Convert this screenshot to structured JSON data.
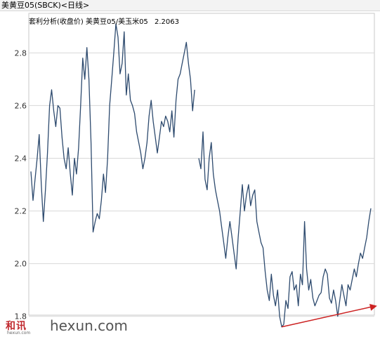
{
  "window_title": "美黄豆05(SBCK)<日线>",
  "legend_text": "套利分析(收盘价) 美黄豆05/美玉米05",
  "legend_value": "2.2063",
  "watermark": {
    "cn": "和讯",
    "sub": "hexun.com",
    "en": "hexun.com"
  },
  "colors": {
    "line": "#2d4a6e",
    "trend_arrow": "#cc2222",
    "grid": "#d8d8d8",
    "title_bar": "#f3f3f3"
  },
  "chart_data": {
    "type": "line",
    "title": "套利分析(收盘价) 美黄豆05/美玉米05",
    "xlabel": "",
    "ylabel": "",
    "ylim": [
      1.77,
      2.95
    ],
    "yticks": [
      1.8,
      2.0,
      2.2,
      2.4,
      2.6,
      2.8
    ],
    "ytick_labels": [
      "1.8",
      "2.0",
      "2.2",
      "2.4",
      "2.6",
      "2.8"
    ],
    "grid": true,
    "x_axis_labels_shown": false,
    "last_value": 2.2063,
    "series": [
      {
        "values": [
          2.35,
          2.24,
          2.32,
          2.4,
          2.49,
          2.3,
          2.16,
          2.28,
          2.42,
          2.6,
          2.66,
          2.58,
          2.52,
          2.6,
          2.59,
          2.48,
          2.4,
          2.36,
          2.44,
          2.34,
          2.26,
          2.4,
          2.34,
          2.44,
          2.6,
          2.78,
          2.7,
          2.82,
          2.7,
          2.46,
          2.12,
          2.16,
          2.19,
          2.17,
          2.24,
          2.34,
          2.27,
          2.4,
          2.6,
          2.7,
          2.8,
          2.91,
          2.86,
          2.72,
          2.76,
          2.88,
          2.64,
          2.72,
          2.62,
          2.6,
          2.57,
          2.5,
          2.46,
          2.42,
          2.36,
          2.4,
          2.46,
          2.56,
          2.62,
          2.54,
          2.48,
          2.42,
          2.48,
          2.54,
          2.52,
          2.56,
          2.54,
          2.5,
          2.58,
          2.48,
          2.62,
          2.7,
          2.72,
          2.76,
          2.8,
          2.84,
          2.76,
          2.7,
          2.58,
          2.66,
          null,
          2.4,
          2.36,
          2.5,
          2.32,
          2.28,
          2.4,
          2.46,
          2.34,
          2.28,
          2.24,
          2.2,
          2.14,
          2.08,
          2.02,
          2.1,
          2.16,
          2.1,
          2.04,
          1.98,
          2.1,
          2.2,
          2.3,
          2.2,
          2.26,
          2.3,
          2.22,
          2.26,
          2.28,
          2.16,
          2.12,
          2.08,
          2.06,
          1.97,
          1.9,
          1.86,
          1.96,
          1.88,
          1.84,
          1.9,
          1.8,
          1.76,
          1.77,
          1.86,
          1.83,
          1.95,
          1.97,
          1.9,
          1.92,
          1.84,
          1.96,
          1.92,
          2.16,
          1.98,
          1.9,
          1.94,
          1.87,
          1.84,
          1.86,
          1.88,
          1.89,
          1.95,
          1.98,
          1.96,
          1.87,
          1.85,
          1.9,
          1.86,
          1.8,
          1.86,
          1.92,
          1.88,
          1.84,
          1.92,
          1.9,
          1.94,
          1.98,
          1.95,
          2.0,
          2.04,
          2.02,
          2.06,
          2.1,
          2.16,
          2.21
        ]
      }
    ],
    "annotations": [
      {
        "type": "trend_arrow",
        "from": [
          121,
          1.76
        ],
        "to": [
          167,
          1.84
        ]
      }
    ]
  }
}
